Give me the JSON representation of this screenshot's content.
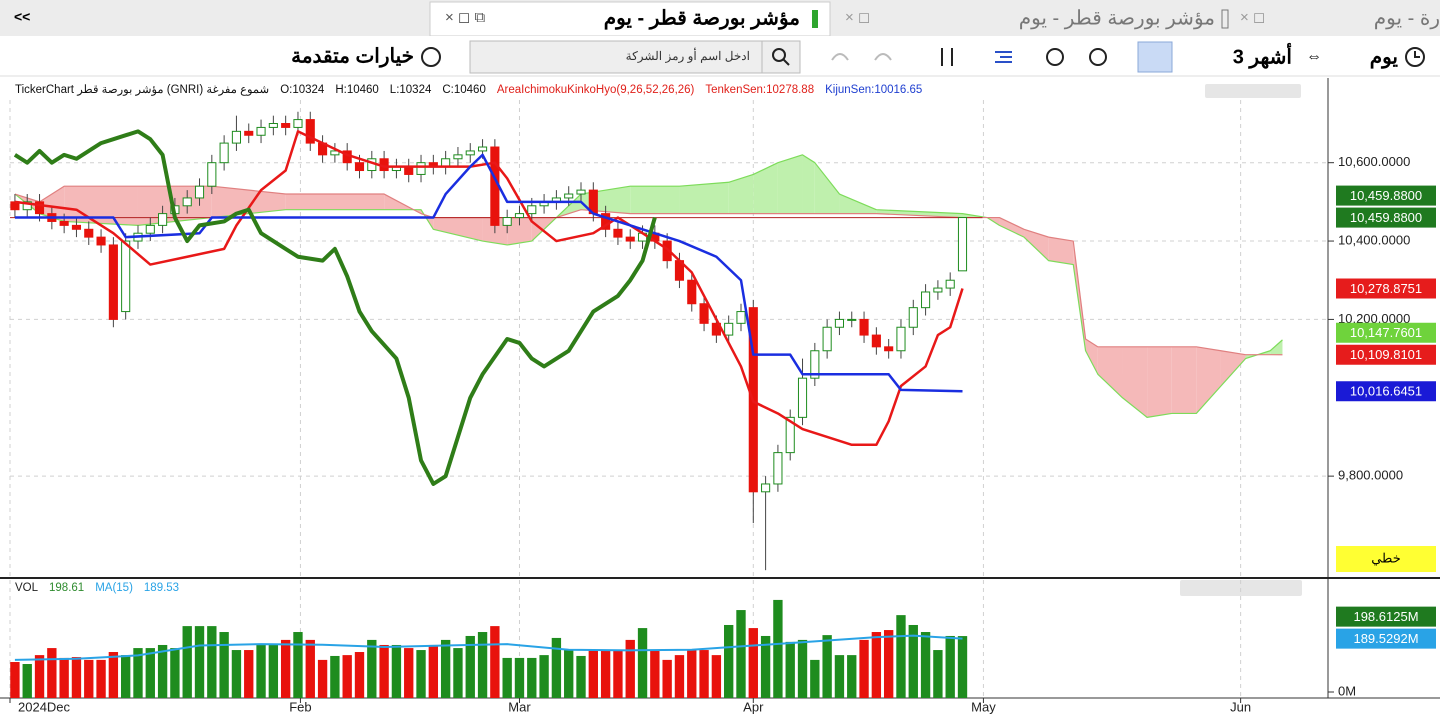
{
  "nav": {
    "collapse": "<<",
    "tabs": [
      "مؤشر بورصة قطر - يوم",
      "مؤشر بورصة قطر - يوم",
      "رة - يوم"
    ],
    "toolbar": {
      "period": "يوم",
      "range": "3 أشهر",
      "advanced": "خيارات متقدمة",
      "search_placeholder": "ادخل اسم أو رمز الشركة"
    }
  },
  "legend": [
    {
      "text": "TickerChart مؤشر بورصة قطر (GNRI) شموع مفرغة",
      "color": "#111111"
    },
    {
      "text": "O:10324",
      "color": "#111111"
    },
    {
      "text": "H:10460",
      "color": "#111111"
    },
    {
      "text": "L:10324",
      "color": "#111111"
    },
    {
      "text": "C:10460",
      "color": "#111111"
    },
    {
      "text": "AreaIchimokuKinkoHyo(9,26,52,26,26)",
      "color": "#e0201a"
    },
    {
      "text": "TenkenSen:10278.88",
      "color": "#e0201a"
    },
    {
      "text": "KijunSen:10016.65",
      "color": "#1f3fd0"
    }
  ],
  "scale_label": "خطي",
  "chart_data": [
    {
      "type": "candlestick",
      "xlim": [
        -0.4,
        106.7
      ],
      "xticks": [
        {
          "value": -0.4,
          "label": "2024Dec"
        },
        {
          "value": 23.2,
          "label": "Feb"
        },
        {
          "value": 41,
          "label": "Mar"
        },
        {
          "value": 60,
          "label": "Apr"
        },
        {
          "value": 78.7,
          "label": "May"
        },
        {
          "value": 99.6,
          "label": "Jun"
        }
      ],
      "ylim": [
        9540,
        10760
      ],
      "yticks": [
        {
          "value": 10600,
          "label": "10,600.0000"
        },
        {
          "value": 10400,
          "label": "10,400.0000"
        },
        {
          "value": 10200,
          "label": "10,200.0000"
        },
        {
          "value": 9800,
          "label": "9,800.0000"
        }
      ],
      "grid": true,
      "up_color": "#1e8c1e",
      "down_color": "#e8120c",
      "open": [
        10500,
        10480,
        10500,
        10470,
        10450,
        10440,
        10430,
        10410,
        10390,
        10220,
        10400,
        10420,
        10440,
        10470,
        10490,
        10510,
        10540,
        10600,
        10650,
        10680,
        10670,
        10690,
        10700,
        10690,
        10710,
        10650,
        10620,
        10630,
        10600,
        10580,
        10610,
        10580,
        10590,
        10570,
        10600,
        10590,
        10610,
        10620,
        10630,
        10640,
        10440,
        10460,
        10470,
        10490,
        10500,
        10510,
        10520,
        10530,
        10470,
        10430,
        10410,
        10400,
        10420,
        10400,
        10350,
        10300,
        10240,
        10190,
        10160,
        10190,
        10230,
        9760,
        9780,
        9860,
        9950,
        10050,
        10120,
        10180,
        10200,
        10200,
        10160,
        10130,
        10120,
        10180,
        10230,
        10270,
        10280,
        10324
      ],
      "high": [
        10520,
        10520,
        10520,
        10490,
        10470,
        10460,
        10450,
        10430,
        10410,
        10420,
        10440,
        10460,
        10490,
        10510,
        10530,
        10560,
        10620,
        10670,
        10720,
        10700,
        10710,
        10720,
        10720,
        10730,
        10730,
        10670,
        10650,
        10650,
        10620,
        10630,
        10630,
        10610,
        10610,
        10620,
        10620,
        10630,
        10640,
        10650,
        10660,
        10660,
        10480,
        10490,
        10510,
        10520,
        10530,
        10540,
        10550,
        10550,
        10490,
        10450,
        10430,
        10440,
        10440,
        10420,
        10370,
        10320,
        10260,
        10210,
        10210,
        10240,
        10250,
        9800,
        9880,
        9970,
        10100,
        10140,
        10200,
        10220,
        10220,
        10220,
        10180,
        10150,
        10200,
        10250,
        10290,
        10300,
        10320,
        10460
      ],
      "low": [
        10460,
        10460,
        10450,
        10430,
        10420,
        10410,
        10390,
        10370,
        10180,
        10200,
        10380,
        10400,
        10420,
        10450,
        10470,
        10490,
        10520,
        10580,
        10630,
        10650,
        10650,
        10670,
        10670,
        10670,
        10630,
        10600,
        10600,
        10580,
        10560,
        10560,
        10560,
        10560,
        10550,
        10550,
        10570,
        10570,
        10590,
        10600,
        10610,
        10420,
        10420,
        10440,
        10450,
        10470,
        10480,
        10490,
        10500,
        10450,
        10410,
        10390,
        10380,
        10380,
        10380,
        10330,
        10280,
        10220,
        10170,
        10140,
        10140,
        10170,
        9680,
        9560,
        9760,
        9840,
        9930,
        10030,
        10100,
        10160,
        10180,
        10140,
        10110,
        10100,
        10100,
        10160,
        10210,
        10250,
        10260,
        10324
      ],
      "close": [
        10480,
        10500,
        10470,
        10450,
        10440,
        10430,
        10410,
        10390,
        10200,
        10400,
        10420,
        10440,
        10470,
        10490,
        10510,
        10540,
        10600,
        10650,
        10680,
        10670,
        10690,
        10700,
        10690,
        10710,
        10650,
        10620,
        10630,
        10600,
        10580,
        10610,
        10580,
        10590,
        10570,
        10600,
        10590,
        10610,
        10620,
        10630,
        10640,
        10440,
        10460,
        10470,
        10490,
        10500,
        10510,
        10520,
        10530,
        10470,
        10430,
        10410,
        10400,
        10420,
        10400,
        10350,
        10300,
        10240,
        10190,
        10160,
        10190,
        10220,
        9760,
        9780,
        9860,
        9950,
        10050,
        10120,
        10180,
        10200,
        10200,
        10160,
        10130,
        10120,
        10180,
        10230,
        10270,
        10280,
        10300,
        10460
      ],
      "cloud": {
        "x": [
          0,
          2,
          4,
          10,
          16,
          22,
          30,
          33,
          34,
          38,
          40,
          42,
          44,
          46,
          50,
          54,
          58,
          60,
          62,
          64,
          65,
          67,
          70,
          77,
          79,
          80,
          82,
          84,
          86,
          87,
          88,
          90,
          92,
          94,
          96,
          98,
          100,
          102,
          103
        ],
        "senkou_a": [
          10520,
          10470,
          10450,
          10440,
          10460,
          10480,
          10480,
          10480,
          10430,
          10400,
          10390,
          10400,
          10460,
          10520,
          10540,
          10540,
          10550,
          10570,
          10600,
          10620,
          10600,
          10520,
          10480,
          10470,
          10460,
          10440,
          10410,
          10350,
          10340,
          10120,
          10060,
          10000,
          9950,
          9960,
          9960,
          10030,
          10100,
          10120,
          10147.7601
        ],
        "senkou_b": [
          10520,
          10500,
          10540,
          10540,
          10540,
          10520,
          10520,
          10470,
          10460,
          10460,
          10460,
          10460,
          10460,
          10480,
          10470,
          10470,
          10470,
          10470,
          10470,
          10470,
          10470,
          10470,
          10470,
          10460,
          10460,
          10460,
          10430,
          10410,
          10400,
          10150,
          10130,
          10130,
          10130,
          10130,
          10130,
          10120,
          10110,
          10110,
          10109.8101
        ],
        "a_color": "#7ddc5a",
        "b_color": "#e08080",
        "bull_fill": "#bff0ad",
        "bear_fill": "#f5b9b9"
      },
      "lines": [
        {
          "color": "#e81818",
          "width": 2.5,
          "x": [
            0,
            5,
            8,
            11,
            14,
            17,
            18,
            20,
            22,
            23,
            25,
            27,
            30,
            33,
            37,
            39,
            40,
            42,
            44,
            47,
            49,
            51,
            53,
            55,
            57,
            59,
            60,
            62,
            64,
            66,
            68,
            70,
            71,
            72,
            74,
            75,
            76,
            77
          ],
          "values": [
            10500,
            10480,
            10420,
            10340,
            10360,
            10380,
            10440,
            10530,
            10580,
            10680,
            10650,
            10620,
            10590,
            10590,
            10590,
            10600,
            10560,
            10450,
            10400,
            10420,
            10460,
            10420,
            10380,
            10320,
            10200,
            10080,
            9990,
            9960,
            9920,
            9900,
            9880,
            9880,
            9940,
            10030,
            10080,
            10160,
            10180,
            10278.8751
          ]
        },
        {
          "color": "#1a2ee0",
          "width": 2.5,
          "x": [
            0,
            8,
            9,
            15,
            16,
            34,
            35,
            37,
            38,
            39,
            40,
            46,
            47,
            54,
            57,
            59,
            60,
            63,
            64,
            71,
            72,
            77
          ],
          "values": [
            10460,
            10460,
            10410,
            10420,
            10460,
            10460,
            10520,
            10590,
            10620,
            10560,
            10500,
            10500,
            10470,
            10400,
            10360,
            10300,
            10110,
            10110,
            10060,
            10060,
            10020,
            10016.6451
          ]
        },
        {
          "color": "#2f7d18",
          "width": 4,
          "x": [
            0,
            1,
            2,
            3,
            4,
            5,
            7,
            8,
            10,
            11,
            12,
            13,
            14,
            15,
            17,
            18,
            19,
            20,
            22,
            23,
            25,
            26,
            27,
            28,
            29,
            31,
            32,
            33,
            34,
            35,
            36,
            37,
            38,
            40,
            41,
            42,
            43,
            45,
            47,
            49,
            50,
            51,
            52
          ],
          "values": [
            10620,
            10600,
            10630,
            10600,
            10620,
            10610,
            10650,
            10660,
            10680,
            10660,
            10620,
            10460,
            10400,
            10440,
            10450,
            10470,
            10480,
            10420,
            10380,
            10360,
            10350,
            10380,
            10310,
            10220,
            10170,
            10100,
            10000,
            9840,
            9780,
            9800,
            9900,
            10000,
            10060,
            10150,
            10140,
            10100,
            10080,
            10120,
            10220,
            10260,
            10300,
            10350,
            10460
          ]
        }
      ],
      "hline": {
        "value": 10459.88,
        "color": "#b22222"
      },
      "price_tags": [
        {
          "value": 10459.88,
          "label": "10,459.8800",
          "color": "#1f7a1f"
        },
        {
          "value": 10459.88,
          "label": "10,459.8800",
          "color": "#1f7a1f"
        },
        {
          "value": 10278.8751,
          "label": "10,278.8751",
          "color": "#e61c1c"
        },
        {
          "value": 10147.7601,
          "label": "10,147.7601",
          "color": "#6fd33c"
        },
        {
          "value": 10109.8101,
          "label": "10,109.8101",
          "color": "#e61c1c"
        },
        {
          "value": 10016.6451,
          "label": "10,016.6451",
          "color": "#1a1ad6"
        }
      ]
    },
    {
      "type": "bar",
      "legend": [
        {
          "text": "VOL",
          "color": "#222222"
        },
        {
          "text": "198.61",
          "color": "#2e8b2e"
        },
        {
          "text": "MA(15)",
          "color": "#29a3e6"
        },
        {
          "text": "189.53",
          "color": "#29a3e6"
        }
      ],
      "ylim": [
        0,
        380
      ],
      "yticks": [
        {
          "value": 0,
          "label": "0M"
        }
      ],
      "values": [
        106.5,
        99.4,
        131,
        156,
        121,
        124,
        114,
        114,
        142,
        131,
        156,
        156,
        167,
        156,
        234,
        234,
        234,
        213,
        149,
        149,
        167,
        167,
        185,
        213,
        185,
        114,
        128,
        131,
        142,
        185,
        167,
        167,
        156,
        149,
        167,
        185,
        156,
        199,
        213,
        234,
        121,
        121,
        121,
        131,
        192,
        149,
        128,
        149,
        149,
        149,
        185,
        227,
        149,
        114,
        131,
        149,
        149,
        131,
        238,
        291,
        227,
        199,
        327,
        178,
        185,
        114,
        202,
        131,
        131,
        185,
        213,
        220,
        273,
        238,
        213,
        149,
        199,
        198.61
      ],
      "up_color": "#1e8c1e",
      "down_color": "#e8120c",
      "ma": {
        "color": "#29a3e6",
        "x": [
          0,
          5,
          10,
          15,
          20,
          25,
          30,
          35,
          40,
          45,
          50,
          55,
          60,
          65,
          70,
          73,
          77
        ],
        "values": [
          114,
          118,
          130,
          165,
          170,
          168,
          160,
          165,
          170,
          150,
          148,
          150,
          165,
          180,
          195,
          200,
          189.53
        ]
      },
      "price_tags": [
        {
          "value": 198.6125,
          "label": "198.6125M",
          "color": "#1f7a1f"
        },
        {
          "value": 189.5292,
          "label": "189.5292M",
          "color": "#29a3e6"
        }
      ]
    }
  ]
}
